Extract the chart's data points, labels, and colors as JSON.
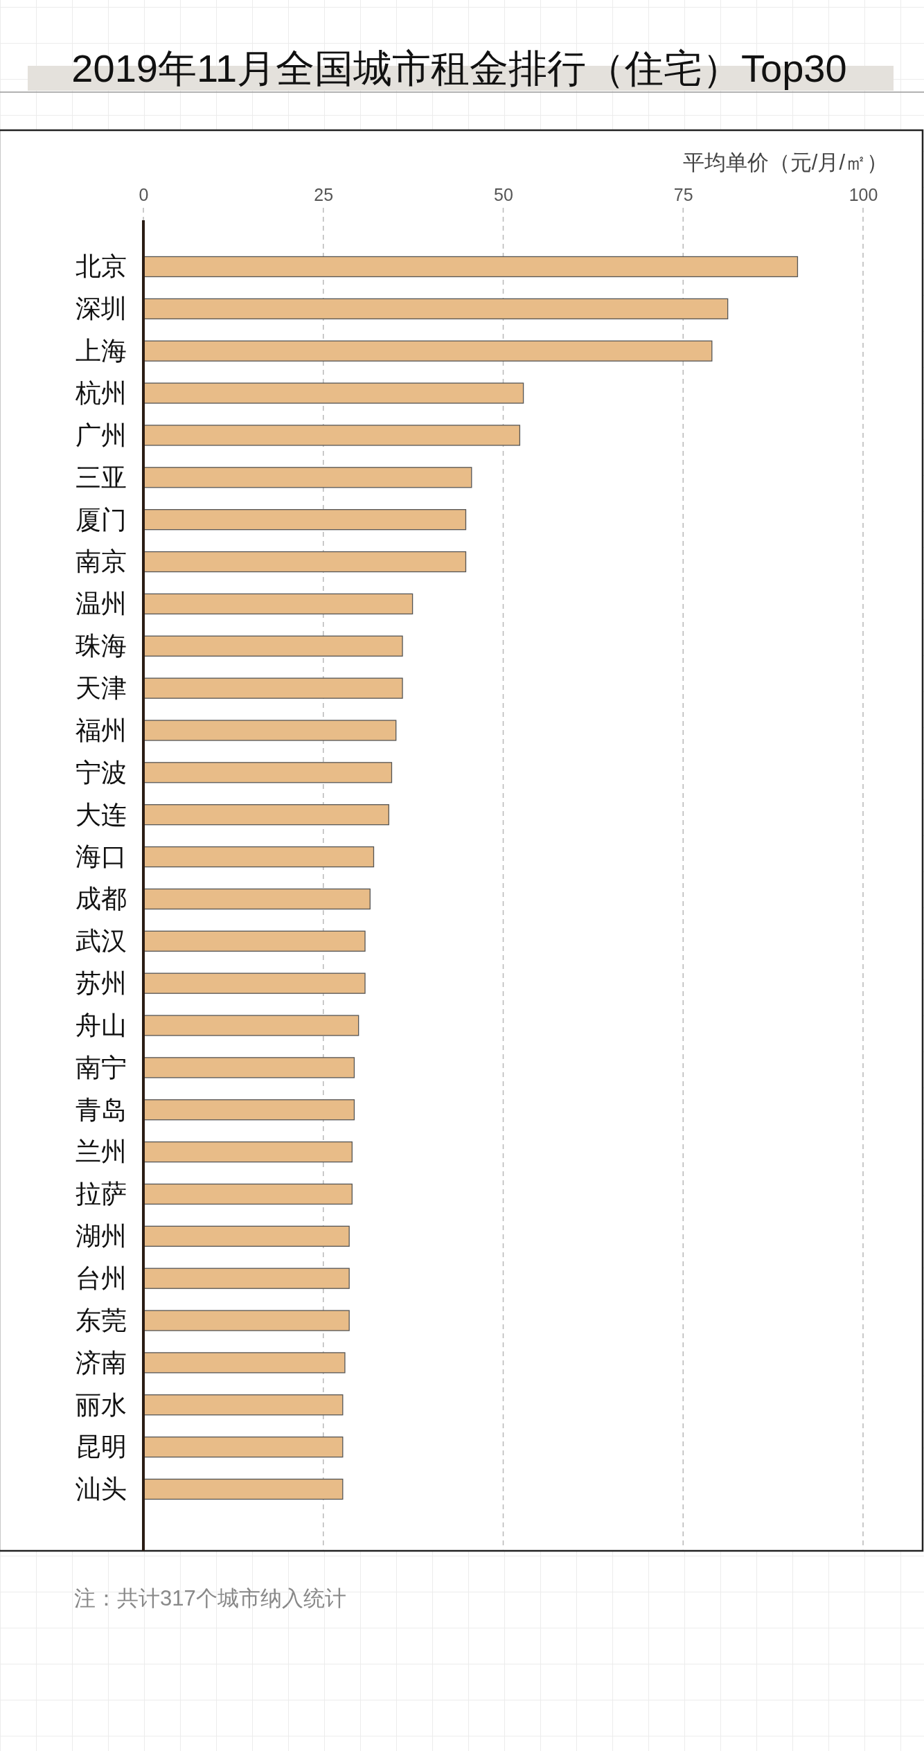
{
  "chart_data": {
    "type": "bar",
    "orientation": "horizontal",
    "title": "2019年11月全国城市租金排行（住宅）Top30",
    "xlabel": "平均单价（元/月/㎡）",
    "categories": [
      "北京",
      "深圳",
      "上海",
      "杭州",
      "广州",
      "三亚",
      "厦门",
      "南京",
      "温州",
      "珠海",
      "天津",
      "福州",
      "宁波",
      "大连",
      "海口",
      "成都",
      "武汉",
      "苏州",
      "舟山",
      "南宁",
      "青岛",
      "兰州",
      "拉萨",
      "湖州",
      "台州",
      "东莞",
      "济南",
      "丽水",
      "昆明",
      "汕头"
    ],
    "values": [
      90.9,
      81.2,
      79.0,
      52.8,
      52.3,
      45.6,
      44.8,
      44.8,
      37.4,
      36.0,
      36.0,
      35.1,
      34.5,
      34.1,
      32.0,
      31.5,
      30.8,
      30.8,
      29.9,
      29.3,
      29.3,
      29.0,
      29.0,
      28.6,
      28.6,
      28.6,
      28.0,
      27.7,
      27.7,
      27.7
    ],
    "color": "#e8bc88",
    "xlim": [
      0,
      100
    ],
    "xticks": [
      0,
      25,
      50,
      75,
      100
    ],
    "grid": "x",
    "annotations": [
      "注：共计317个城市纳入统计"
    ]
  }
}
